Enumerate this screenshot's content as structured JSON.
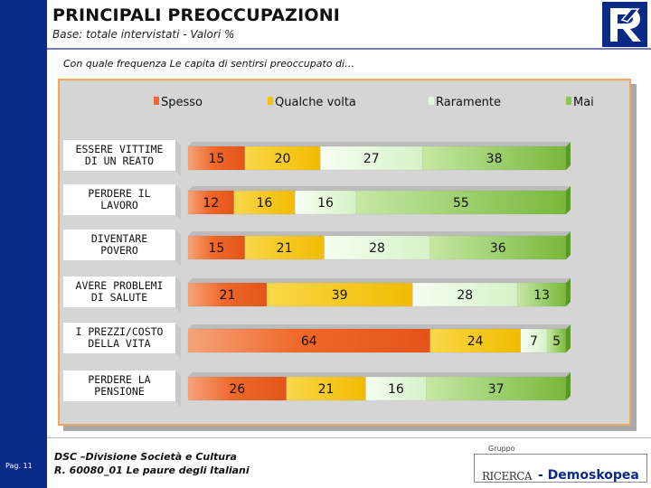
{
  "header": {
    "title": "PRINCIPALI PREOCCUPAZIONI",
    "subtitle": "Base: totale intervistati - Valori %",
    "question": "Con quale frequenza Le capita di sentirsi preoccupato di…"
  },
  "footer": {
    "page": "Pag. 11",
    "line1": "DSC –Divisione Società e Cultura",
    "line2": "R. 60080_01 Le paure degli Italiani",
    "brand_group": "Gruppo",
    "brand_ricerca": "RICERCA",
    "brand_demoskopea": "- Demoskopea"
  },
  "colors": {
    "spesso": "#f0682a",
    "qualche_volta": "#f5c200",
    "raramente": "#e4f8dc",
    "mai": "#8cc850"
  },
  "chart_data": {
    "type": "bar",
    "orientation": "horizontal",
    "stacked": true,
    "categories": [
      "ESSERE VITTIME DI UN REATO",
      "PERDERE IL LAVORO",
      "DIVENTARE POVERO",
      "AVERE PROBLEMI DI SALUTE",
      "I PREZZI/COSTO DELLA VITA",
      "PERDERE LA PENSIONE"
    ],
    "category_lines": [
      [
        "ESSERE VITTIME",
        "DI UN REATO"
      ],
      [
        "PERDERE IL",
        "LAVORO"
      ],
      [
        "DIVENTARE",
        "POVERO"
      ],
      [
        "AVERE PROBLEMI",
        "DI SALUTE"
      ],
      [
        "I PREZZI/COSTO",
        "DELLA VITA"
      ],
      [
        "PERDERE LA",
        "PENSIONE"
      ]
    ],
    "series": [
      {
        "name": "Spesso",
        "values": [
          15,
          12,
          15,
          21,
          64,
          26
        ]
      },
      {
        "name": "Qualche volta",
        "values": [
          20,
          16,
          21,
          39,
          24,
          21
        ]
      },
      {
        "name": "Raramente",
        "values": [
          27,
          16,
          28,
          28,
          7,
          16
        ]
      },
      {
        "name": "Mai",
        "values": [
          38,
          55,
          36,
          13,
          5,
          37
        ]
      }
    ],
    "legend_position": "top",
    "xlim": [
      0,
      100
    ],
    "unit": "%"
  }
}
